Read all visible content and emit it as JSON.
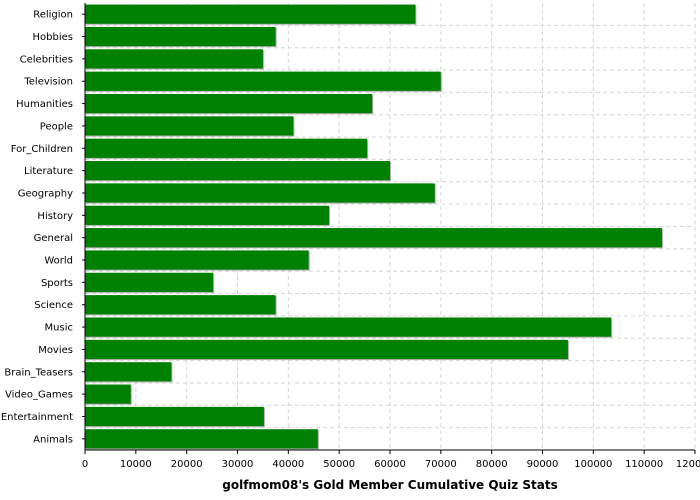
{
  "chart_data": {
    "type": "bar",
    "orientation": "horizontal",
    "title": "",
    "xlabel": "golfmom08's Gold Member Cumulative Quiz Stats",
    "ylabel": "",
    "xlim": [
      0,
      120000
    ],
    "xticks": [
      0,
      10000,
      20000,
      30000,
      40000,
      50000,
      60000,
      70000,
      80000,
      90000,
      100000,
      110000,
      120000
    ],
    "grid": true,
    "legend": "none",
    "bar_color": "#008000",
    "categories": [
      "Religion",
      "Hobbies",
      "Celebrities",
      "Television",
      "Humanities",
      "People",
      "For_Children",
      "Literature",
      "Geography",
      "History",
      "General",
      "World",
      "Sports",
      "Science",
      "Music",
      "Movies",
      "Brain_Teasers",
      "Video_Games",
      "Entertainment",
      "Animals"
    ],
    "values": [
      65000,
      37500,
      35000,
      70000,
      56500,
      41000,
      55500,
      60000,
      68800,
      48000,
      113500,
      44000,
      25200,
      37500,
      103500,
      95000,
      17000,
      9000,
      35200,
      45800
    ]
  }
}
